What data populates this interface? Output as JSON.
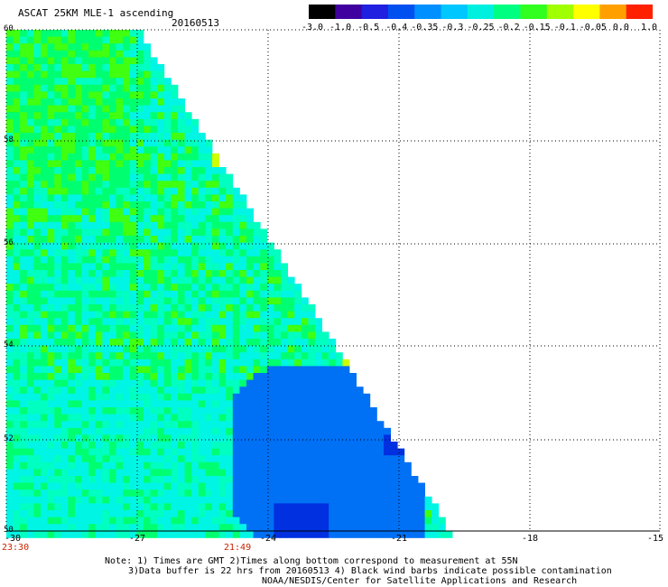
{
  "header": {
    "title": "ASCAT 25KM MLE-1 ascending",
    "date": "20160513"
  },
  "colorbar": {
    "labels": [
      "-3.0",
      "-1.0",
      "-0.5",
      "-0.4",
      "-0.35",
      "-0.3",
      "-0.25",
      "-0.2",
      "-0.15",
      "-0.1",
      "-0.05",
      "0.0",
      "1.0"
    ],
    "colors": [
      "#000000",
      "#4000a0",
      "#2020e0",
      "#0050f0",
      "#0090ff",
      "#00c8ff",
      "#00f0e0",
      "#00ff80",
      "#30ff20",
      "#a0ff00",
      "#ffff00",
      "#ffa000",
      "#ff2000"
    ]
  },
  "map": {
    "y_labels": [
      "60",
      "58",
      "56",
      "54",
      "52",
      "50"
    ],
    "x_labels": [
      "-30",
      "-27",
      "-24",
      "-21",
      "-18",
      "-15"
    ],
    "time_labels": [
      "23:30",
      "21:49"
    ],
    "palette": {
      "cyan": "#00f5e5",
      "aqua": "#00ffc0",
      "green": "#00ff70",
      "lime": "#40ff10",
      "yellow": "#d0ff00",
      "blue": "#0070f5",
      "deep_blue": "#0030e0"
    }
  },
  "notes": {
    "line1": "Note: 1) Times are GMT 2)Times along bottom correspond to measurement at 55N",
    "line2": "3)Data buffer is 22 hrs from 20160513 4) Black wind barbs indicate possible contamination",
    "line3": "NOAA/NESDIS/Center for Satellite Applications and Research"
  }
}
